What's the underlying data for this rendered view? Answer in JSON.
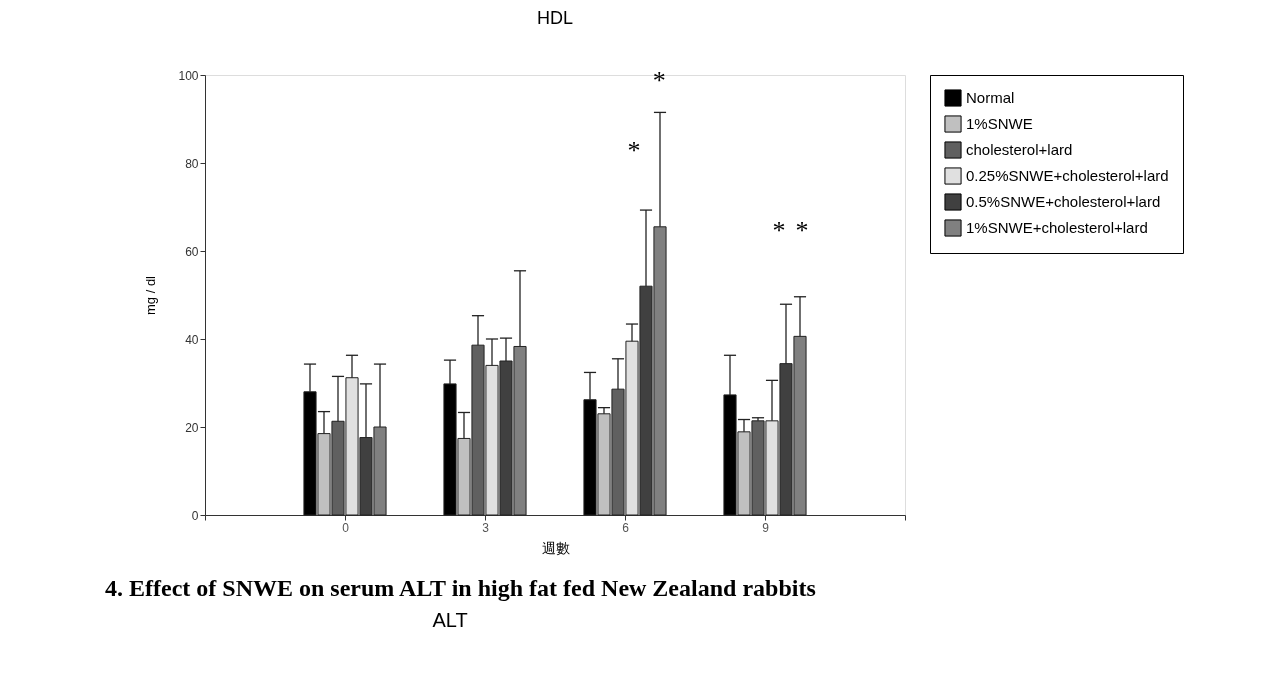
{
  "chart_data": {
    "type": "bar",
    "title": "HDL",
    "xlabel": "週數",
    "ylabel": "mg / dl",
    "x": [
      0,
      3,
      6,
      9
    ],
    "xlim": [
      -3,
      12
    ],
    "xticks": [
      {
        "value": -3,
        "label": null
      },
      0,
      3,
      6,
      9,
      {
        "value": 12,
        "label": null
      }
    ],
    "ylim": [
      0,
      100
    ],
    "yticks": [
      0,
      20,
      40,
      60,
      80,
      100
    ],
    "series": [
      {
        "name": "Normal",
        "color": "#000000",
        "values": [
          28,
          29.8,
          26.2,
          27.3
        ],
        "errors": [
          [
            28,
            34.3
          ],
          [
            29.8,
            35.2
          ],
          [
            26.2,
            32.4
          ],
          [
            27.3,
            36.3
          ]
        ]
      },
      {
        "name": "1%SNWE",
        "color": "#c0c0c0",
        "values": [
          18.5,
          17.4,
          23,
          18.9
        ],
        "errors": [
          [
            18.5,
            23.5
          ],
          [
            17.4,
            23.3
          ],
          [
            23,
            24.4
          ],
          [
            18.9,
            21.7
          ]
        ]
      },
      {
        "name": "cholesterol+lard",
        "color": "#606060",
        "values": [
          21.3,
          38.6,
          28.6,
          21.4
        ],
        "errors": [
          [
            21.3,
            31.5
          ],
          [
            38.6,
            45.3
          ],
          [
            28.6,
            35.5
          ],
          [
            21.4,
            22.1
          ]
        ]
      },
      {
        "name": "0.25%SNWE+cholesterol+lard",
        "color": "#e0e0e0",
        "values": [
          31.2,
          34,
          39.5,
          21.4
        ],
        "errors": [
          [
            31.2,
            36.3
          ],
          [
            34,
            40
          ],
          [
            39.5,
            43.4
          ],
          [
            21.4,
            30.6
          ]
        ]
      },
      {
        "name": "0.5%SNWE+cholesterol+lard",
        "color": "#404040",
        "values": [
          17.6,
          35,
          52,
          34.4
        ],
        "errors": [
          [
            17.6,
            29.8
          ],
          [
            35,
            40.2
          ],
          [
            52,
            69.3
          ],
          [
            34.4,
            47.9
          ]
        ]
      },
      {
        "name": "1%SNWE+cholesterol+lard",
        "color": "#808080",
        "values": [
          20,
          38.3,
          65.5,
          40.6
        ],
        "errors": [
          [
            20,
            34.3
          ],
          [
            38.3,
            55.5
          ],
          [
            65.5,
            91.5
          ],
          [
            40.6,
            49.6
          ]
        ]
      }
    ],
    "annotations": [
      "*",
      "*",
      "*",
      "*",
      "4. Effect of SNWE on serum ALT in high fat fed New Zealand rabbits",
      "ALT"
    ],
    "legend": "top right",
    "grid": false
  }
}
